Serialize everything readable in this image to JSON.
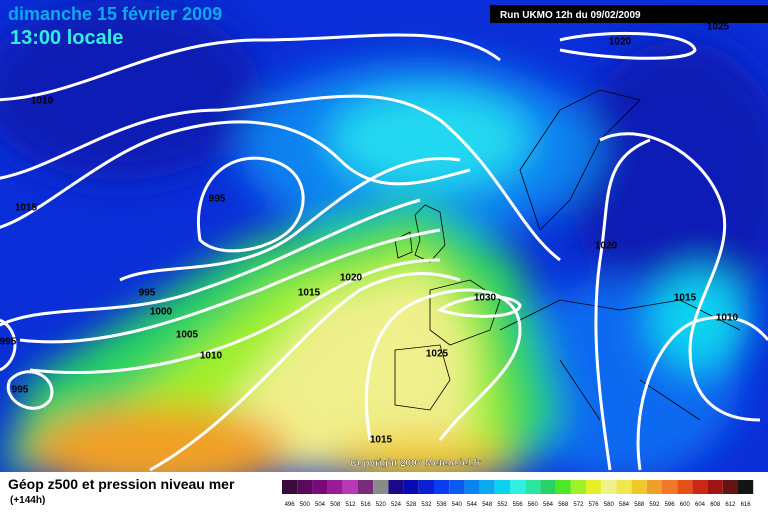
{
  "header": {
    "date": "dimanche 15 février 2009",
    "time": "13:00 locale",
    "run": "Run UKMO 12h du 09/02/2009"
  },
  "isobar_labels": [
    "1020",
    "1025",
    "1010",
    "1015",
    "995",
    "995",
    "1000",
    "1005",
    "1010",
    "1015",
    "1020",
    "1030",
    "1025",
    "1015",
    "1020",
    "1015",
    "1010",
    "995",
    "995"
  ],
  "copyright": "Copyright 2008 Meteociel.fr",
  "legend": {
    "title": "Géop z500 et pression niveau mer",
    "subtitle": "(+144h)",
    "scale": [
      {
        "label": "496",
        "color": "#3a0a3a"
      },
      {
        "label": "500",
        "color": "#5a0a5a"
      },
      {
        "label": "504",
        "color": "#7a0a7a"
      },
      {
        "label": "508",
        "color": "#9a1a9a"
      },
      {
        "label": "512",
        "color": "#b838b8"
      },
      {
        "label": "516",
        "color": "#7a2a7a"
      },
      {
        "label": "520",
        "color": "#8a8a8a"
      },
      {
        "label": "524",
        "color": "#1a0a8a"
      },
      {
        "label": "528",
        "color": "#0a0ab4"
      },
      {
        "label": "532",
        "color": "#0a1ed2"
      },
      {
        "label": "536",
        "color": "#0a3cf0"
      },
      {
        "label": "540",
        "color": "#0a5af0"
      },
      {
        "label": "544",
        "color": "#0a82f0"
      },
      {
        "label": "548",
        "color": "#0aaaf0"
      },
      {
        "label": "552",
        "color": "#0ad2f0"
      },
      {
        "label": "556",
        "color": "#30f0e6"
      },
      {
        "label": "560",
        "color": "#28e6a0"
      },
      {
        "label": "564",
        "color": "#28d264"
      },
      {
        "label": "568",
        "color": "#50e628"
      },
      {
        "label": "572",
        "color": "#a0f028"
      },
      {
        "label": "576",
        "color": "#e6f028"
      },
      {
        "label": "580",
        "color": "#f0f08c"
      },
      {
        "label": "584",
        "color": "#f0e650"
      },
      {
        "label": "588",
        "color": "#f0c828"
      },
      {
        "label": "592",
        "color": "#f0a028"
      },
      {
        "label": "596",
        "color": "#f07828"
      },
      {
        "label": "600",
        "color": "#e65014"
      },
      {
        "label": "604",
        "color": "#c82814"
      },
      {
        "label": "608",
        "color": "#a01414"
      },
      {
        "label": "612",
        "color": "#641414"
      },
      {
        "label": "616",
        "color": "#141414"
      }
    ]
  }
}
